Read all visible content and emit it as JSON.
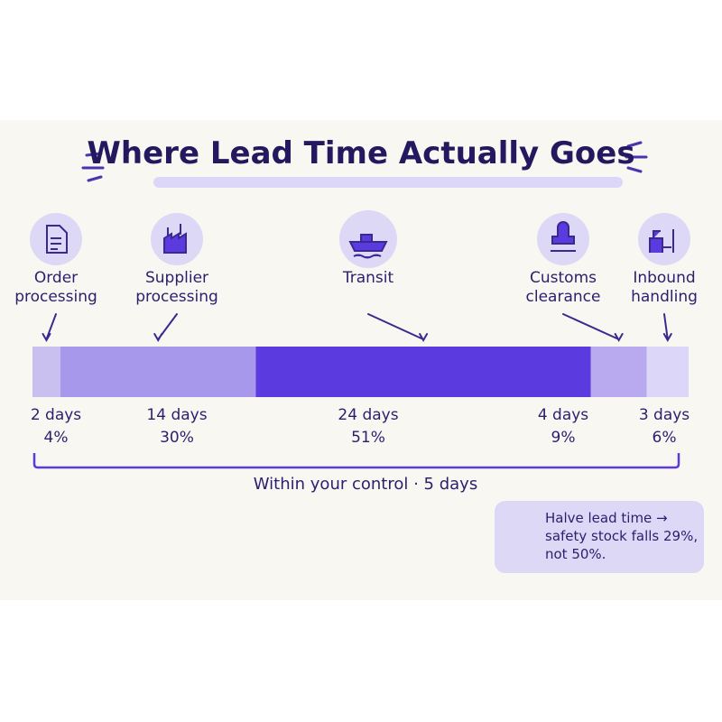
{
  "chart_data": {
    "type": "stacked-bar",
    "title": "Where Lead Time Actually Goes",
    "categories": [
      "Order processing",
      "Supplier processing",
      "Transit",
      "Customs clearance",
      "Inbound handling"
    ],
    "values": [
      2,
      14,
      24,
      4,
      3
    ],
    "value_labels": [
      "2 days",
      "14 days",
      "24 days",
      "4 days",
      "3 days"
    ],
    "shares": [
      4,
      30,
      51,
      9,
      6
    ],
    "share_labels": [
      "4%",
      "30%",
      "51%",
      "9%",
      "6%"
    ],
    "colors": [
      "#c9c0f0",
      "#a898ec",
      "#5b3be0",
      "#b9aaf0",
      "#dcd6f8"
    ],
    "annotation": "Within your control · 5 days",
    "callout": "Halve lead time → safety stock falls 29%, not 50%."
  }
}
